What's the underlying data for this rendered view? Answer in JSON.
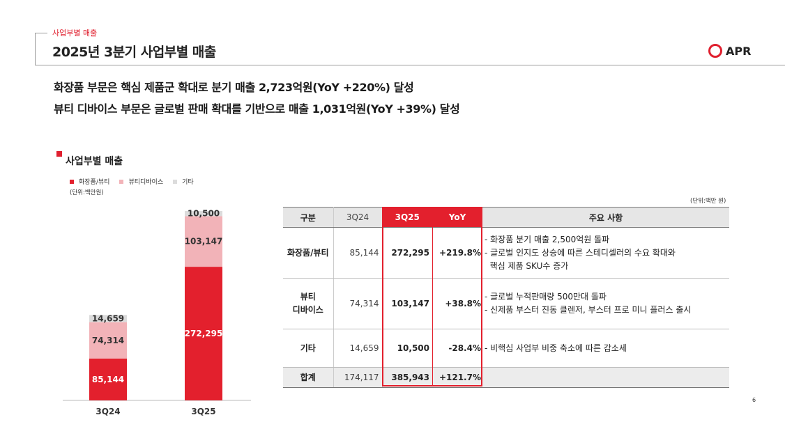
{
  "header": {
    "section_tag": "사업부별 매출",
    "title": "2025년 3분기 사업부별 매출",
    "logo_text": "APR"
  },
  "headlines": [
    "화장품 부문은 핵심 제품군 확대로 분기 매출 2,723억원(YoY +220%) 달성",
    "뷰티 디바이스 부문은 글로벌 판매 확대를 기반으로 매출 1,031억원(YoY +39%) 달성"
  ],
  "chart_section": {
    "title": "사업부별 매출",
    "unit": "(단위:백만원)"
  },
  "colors": {
    "cosmetics": "#e3202d",
    "device": "#f2b3b8",
    "other": "#dcdcdc",
    "accent": "#e3202d"
  },
  "chart_data": {
    "type": "bar",
    "stacked": true,
    "categories": [
      "3Q24",
      "3Q25"
    ],
    "series": [
      {
        "name": "화장품/뷰티",
        "values": [
          85144,
          272295
        ]
      },
      {
        "name": "뷰티디바이스",
        "values": [
          74314,
          103147
        ]
      },
      {
        "name": "기타",
        "values": [
          14659,
          10500
        ]
      }
    ],
    "value_labels": [
      [
        "85,144",
        "272,295"
      ],
      [
        "74,314",
        "103,147"
      ],
      [
        "14,659",
        "10,500"
      ]
    ],
    "legend_position": "top-left",
    "ylim": [
      0,
      385943
    ]
  },
  "table": {
    "unit": "(단위:백만 원)",
    "headers": [
      "구분",
      "3Q24",
      "3Q25",
      "YoY",
      "주요 사항"
    ],
    "rows": [
      {
        "category": [
          "화장품/뷰티"
        ],
        "q24": "85,144",
        "q25": "272,295",
        "yoy": "+219.8%",
        "notes": [
          "- 화장품 분기 매출 2,500억원 돌파",
          "- 글로벌 인지도 상승에 따른 스테디셀러의 수요 확대와",
          "  핵심 제품 SKU수 증가"
        ]
      },
      {
        "category": [
          "뷰티",
          "디바이스"
        ],
        "q24": "74,314",
        "q25": "103,147",
        "yoy": "+38.8%",
        "notes": [
          "- 글로벌 누적판매량 500만대 돌파",
          "- 신제품 부스터 진동 클렌저, 부스터 프로 미니 플러스 출시"
        ]
      },
      {
        "category": [
          "기타"
        ],
        "q24": "14,659",
        "q25": "10,500",
        "yoy": "-28.4%",
        "notes": [
          "- 비핵심 사업부 비중 축소에 따른 감소세"
        ]
      }
    ],
    "total": {
      "label": "합계",
      "q24": "174,117",
      "q25": "385,943",
      "yoy": "+121.7%"
    }
  },
  "page_number": "6"
}
